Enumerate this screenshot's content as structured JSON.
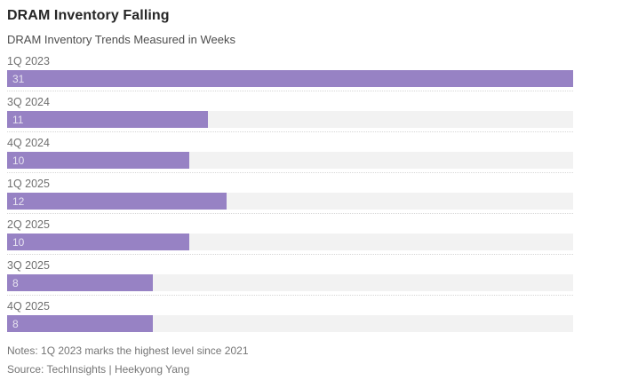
{
  "header": {
    "title": "DRAM Inventory Falling",
    "subtitle": "DRAM Inventory Trends Measured in Weeks"
  },
  "chart_data": {
    "type": "bar",
    "orientation": "horizontal",
    "categories": [
      "1Q 2023",
      "3Q 2024",
      "4Q 2024",
      "1Q 2025",
      "2Q 2025",
      "3Q 2025",
      "4Q 2025"
    ],
    "values": [
      31,
      11,
      10,
      12,
      10,
      8,
      8
    ],
    "title": "DRAM Inventory Falling",
    "subtitle": "DRAM Inventory Trends Measured in Weeks",
    "xlabel": "",
    "ylabel": "",
    "value_unit": "weeks",
    "xlim": [
      0,
      31
    ],
    "data_labels": "inside-left",
    "grid": "dotted row separators",
    "legend": "none",
    "colors": {
      "bar": "#9782c4",
      "track": "#f2f2f2",
      "separator": "#d6d6d6",
      "value_label": "#e7e3f0",
      "category_label": "#6f6f6f",
      "title": "#262626",
      "subtitle": "#4d4d4d",
      "footnote": "#757575"
    }
  },
  "footer": {
    "notes": "Notes: 1Q 2023 marks the highest level since 2021",
    "source": "Source: TechInsights | Heekyong Yang"
  }
}
